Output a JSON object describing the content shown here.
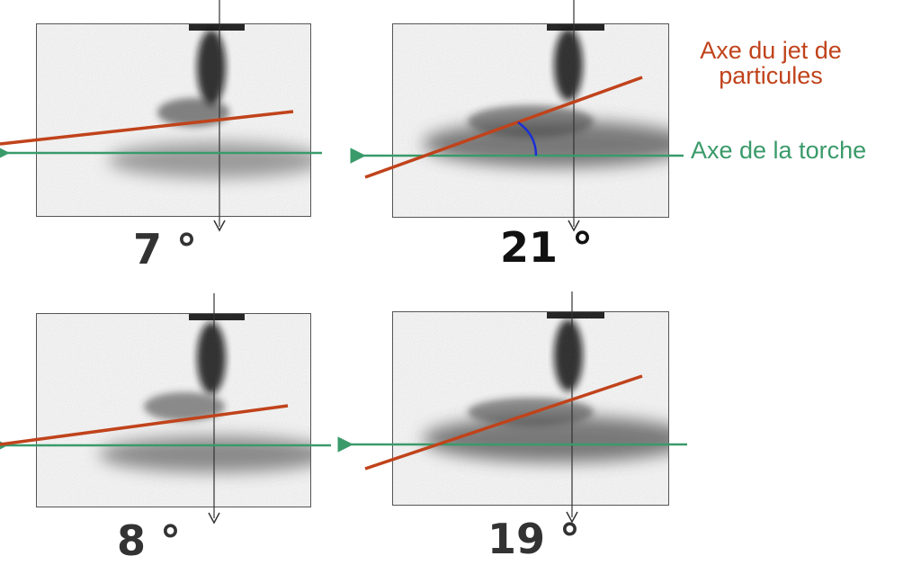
{
  "panels": [
    {
      "id": "top-left",
      "angle_deg": 7,
      "label": "7 °"
    },
    {
      "id": "top-right",
      "angle_deg": 21,
      "label": "21 °"
    },
    {
      "id": "bottom-left",
      "angle_deg": 8,
      "label": "8 °"
    },
    {
      "id": "bottom-right",
      "angle_deg": 19,
      "label": "19 °"
    }
  ],
  "legend": {
    "jet_axis_line1": "Axe du jet de",
    "jet_axis_line2": "particules",
    "torch_axis": "Axe de la torche"
  },
  "colors": {
    "jet_axis": "#c0431b",
    "torch_axis": "#3a9a6a",
    "angle_arc": "#1a2fd6",
    "frame_border": "#555555"
  }
}
